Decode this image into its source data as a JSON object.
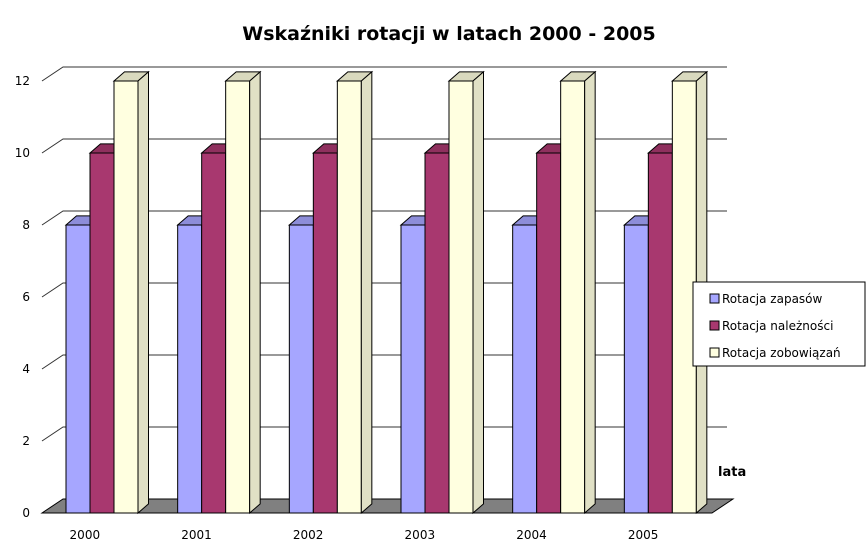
{
  "chart_data": {
    "type": "bar",
    "title": "Wskaźniki rotacji w latach 2000 - 2005",
    "xlabel": "lata",
    "ylabel": "",
    "ylim": [
      0,
      12
    ],
    "yticks": [
      0,
      2,
      4,
      6,
      8,
      10,
      12
    ],
    "categories": [
      "2000",
      "2001",
      "2002",
      "2003",
      "2004",
      "2005"
    ],
    "series": [
      {
        "name": "Rotacja zapasów",
        "values": [
          8,
          8,
          8,
          8,
          8,
          8
        ],
        "color": "#a6a6ff"
      },
      {
        "name": "Rotacja należności",
        "values": [
          10,
          10,
          10,
          10,
          10,
          10
        ],
        "color": "#a8386f"
      },
      {
        "name": "Rotacja zobowiązań",
        "values": [
          12,
          12,
          12,
          12,
          12,
          12
        ],
        "color": "#ffffe0"
      }
    ],
    "grid": true,
    "legend": "right",
    "three_d": true
  }
}
